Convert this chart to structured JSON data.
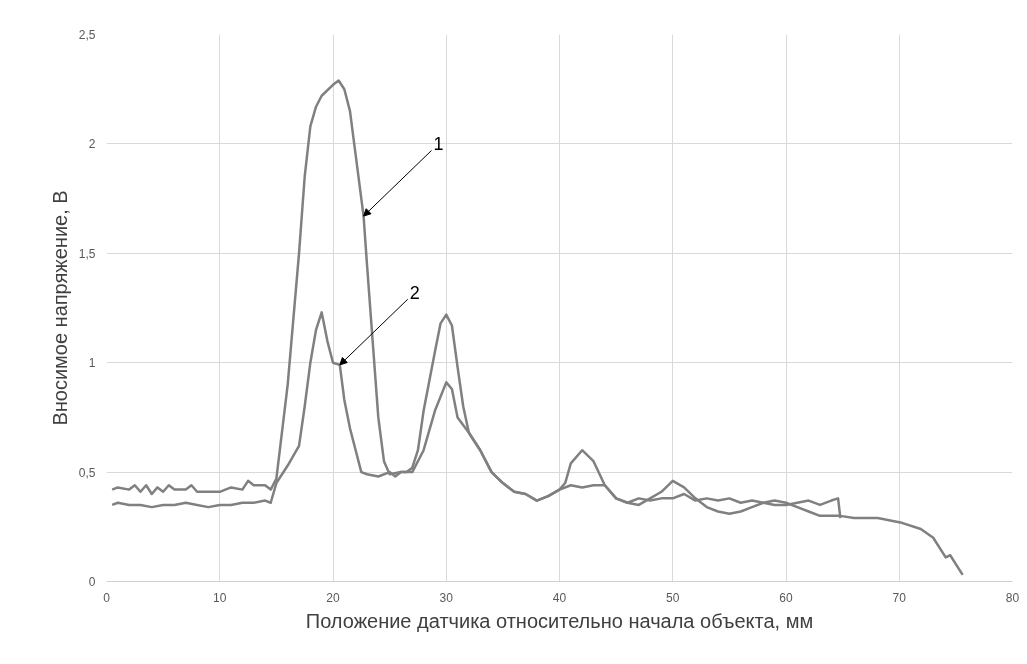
{
  "chart_data": {
    "type": "line",
    "xlabel": "Положение датчика относительно начала объекта, мм",
    "ylabel": "Вносимое напряжение, В",
    "xlim": [
      0,
      80
    ],
    "ylim": [
      0,
      2.5
    ],
    "xticks": [
      0,
      10,
      20,
      30,
      40,
      50,
      60,
      70,
      80
    ],
    "yticks": [
      0,
      {
        "value": 0.5,
        "label": "0,5"
      },
      1,
      {
        "value": 1.5,
        "label": "1,5"
      },
      2,
      {
        "value": 2.5,
        "label": "2,5"
      }
    ],
    "grid": true,
    "marker": "none",
    "line_style": "solid",
    "series": [
      {
        "color": "#808080",
        "x": [
          0.5,
          1,
          2,
          2.5,
          3,
          3.5,
          4,
          4.5,
          5,
          5.5,
          6,
          7,
          7.5,
          8,
          9,
          10,
          11,
          12,
          12.5,
          13,
          14,
          14.5,
          15,
          16,
          17,
          17.5,
          18,
          18.5,
          19,
          20,
          20.5,
          21,
          21.5,
          22,
          22.7,
          23,
          23.5,
          24,
          24.5,
          25,
          26,
          26.5,
          27,
          27.5,
          28,
          29,
          29.5,
          30,
          30.5,
          31,
          31.5,
          32,
          33,
          34,
          35,
          36,
          37,
          38,
          39,
          40,
          40.5,
          41,
          42,
          43,
          44,
          45,
          46,
          47,
          48,
          49,
          50,
          51,
          52,
          53,
          54,
          55,
          56,
          57,
          58,
          59,
          60,
          61,
          62,
          63,
          64,
          64.8,
          66,
          68.1,
          70.1,
          71.9,
          73,
          74.1,
          74.5,
          75.6
        ],
        "values": [
          0.42,
          0.43,
          0.42,
          0.44,
          0.41,
          0.44,
          0.4,
          0.43,
          0.41,
          0.44,
          0.42,
          0.42,
          0.44,
          0.41,
          0.41,
          0.41,
          0.43,
          0.42,
          0.46,
          0.44,
          0.44,
          0.42,
          0.47,
          0.9,
          1.5,
          1.85,
          2.08,
          2.17,
          2.22,
          2.27,
          2.29,
          2.25,
          2.15,
          1.95,
          1.67,
          1.45,
          1.1,
          0.75,
          0.55,
          0.49,
          0.5,
          0.5,
          0.52,
          0.6,
          0.78,
          1.05,
          1.18,
          1.22,
          1.17,
          0.98,
          0.8,
          0.68,
          0.6,
          0.5,
          0.45,
          0.41,
          0.4,
          0.37,
          0.39,
          0.42,
          0.45,
          0.54,
          0.6,
          0.55,
          0.44,
          0.38,
          0.36,
          0.35,
          0.38,
          0.41,
          0.46,
          0.43,
          0.38,
          0.34,
          0.32,
          0.31,
          0.32,
          0.34,
          0.36,
          0.37,
          0.36,
          0.34,
          0.32,
          0.3,
          0.3,
          0.3,
          0.29,
          0.29,
          0.27,
          0.24,
          0.2,
          0.11,
          0.12,
          0.03
        ]
      },
      {
        "color": "#808080",
        "x": [
          0.5,
          1,
          2,
          3,
          4,
          5,
          6,
          7,
          8,
          9,
          10,
          11,
          12,
          13,
          14,
          14.5,
          15,
          16,
          17,
          17.5,
          18,
          18.5,
          19,
          19.5,
          20,
          20.6,
          21,
          21.5,
          22,
          22.5,
          23,
          24,
          25,
          25.5,
          26,
          27,
          28,
          29,
          30,
          30.5,
          31,
          32,
          33,
          34,
          35,
          36,
          37,
          38,
          39,
          40,
          41,
          42,
          43,
          44,
          45,
          46,
          47,
          48,
          49,
          50,
          51,
          52,
          53,
          54,
          55,
          56,
          57,
          58,
          59,
          60,
          61,
          62,
          63,
          64,
          64.6,
          64.8
        ],
        "values": [
          0.35,
          0.36,
          0.35,
          0.35,
          0.34,
          0.35,
          0.35,
          0.36,
          0.35,
          0.34,
          0.35,
          0.35,
          0.36,
          0.36,
          0.37,
          0.36,
          0.45,
          0.53,
          0.62,
          0.8,
          1.0,
          1.15,
          1.23,
          1.1,
          1.0,
          0.99,
          0.83,
          0.7,
          0.6,
          0.5,
          0.49,
          0.48,
          0.5,
          0.48,
          0.5,
          0.5,
          0.6,
          0.78,
          0.91,
          0.88,
          0.75,
          0.68,
          0.6,
          0.5,
          0.45,
          0.41,
          0.4,
          0.37,
          0.39,
          0.42,
          0.44,
          0.43,
          0.44,
          0.44,
          0.38,
          0.36,
          0.38,
          0.37,
          0.38,
          0.38,
          0.4,
          0.37,
          0.38,
          0.37,
          0.38,
          0.36,
          0.37,
          0.36,
          0.35,
          0.35,
          0.36,
          0.37,
          0.35,
          0.37,
          0.38,
          0.29
        ]
      }
    ],
    "annotations": [
      {
        "text": "1",
        "x": 22.7,
        "y": 1.67
      },
      {
        "text": "2",
        "x": 20.6,
        "y": 0.99
      }
    ]
  }
}
